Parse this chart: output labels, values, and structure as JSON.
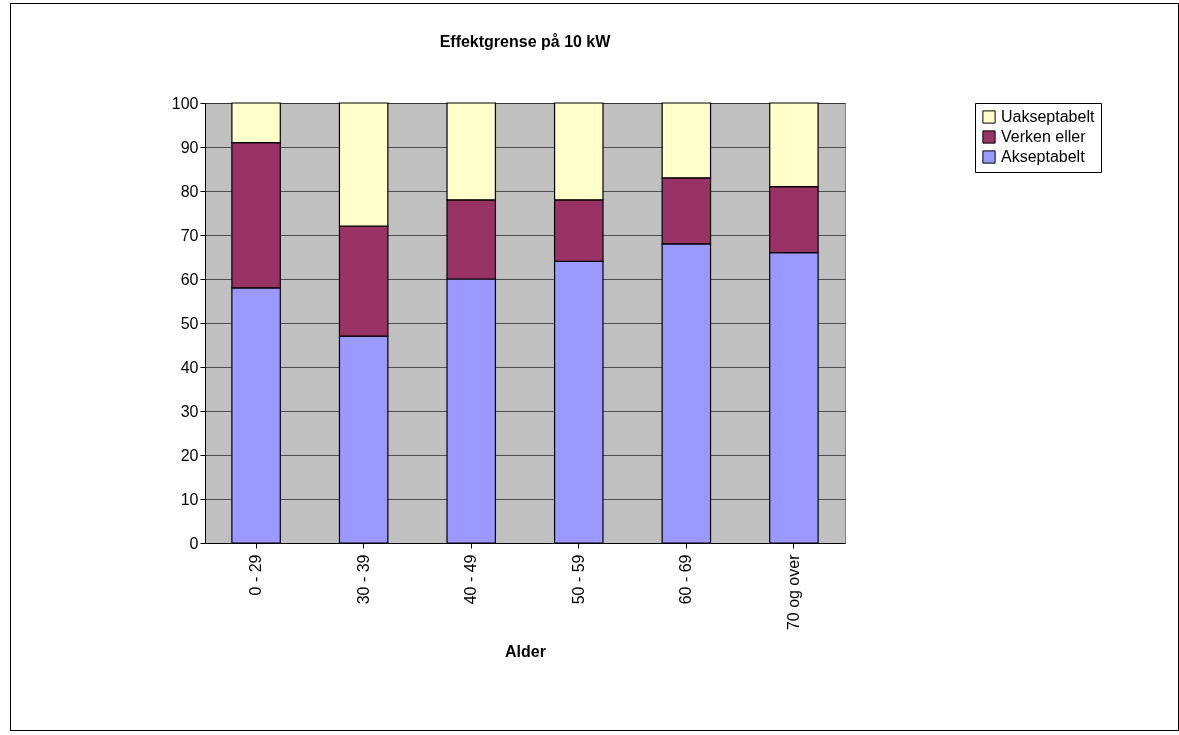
{
  "chart_data": {
    "type": "bar",
    "title": "Effektgrense på 10 kW",
    "xlabel": "Alder",
    "categories": [
      "0 - 29",
      "30 - 39",
      "40 - 49",
      "50 - 59",
      "60 - 69",
      "70 og over"
    ],
    "stacked": true,
    "series": [
      {
        "name": "Akseptabelt",
        "color": "#9999ff",
        "values": [
          58,
          47,
          60,
          64,
          68,
          66
        ]
      },
      {
        "name": "Verken eller",
        "color": "#993366",
        "values": [
          33,
          25,
          18,
          14,
          15,
          15
        ]
      },
      {
        "name": "Uakseptabelt",
        "color": "#ffffcc",
        "values": [
          9,
          28,
          22,
          22,
          17,
          19
        ]
      }
    ],
    "ylim": [
      0,
      100
    ],
    "yticks": [
      0,
      10,
      20,
      30,
      40,
      50,
      60,
      70,
      80,
      90,
      100
    ],
    "grid": "y",
    "legend": "right"
  }
}
